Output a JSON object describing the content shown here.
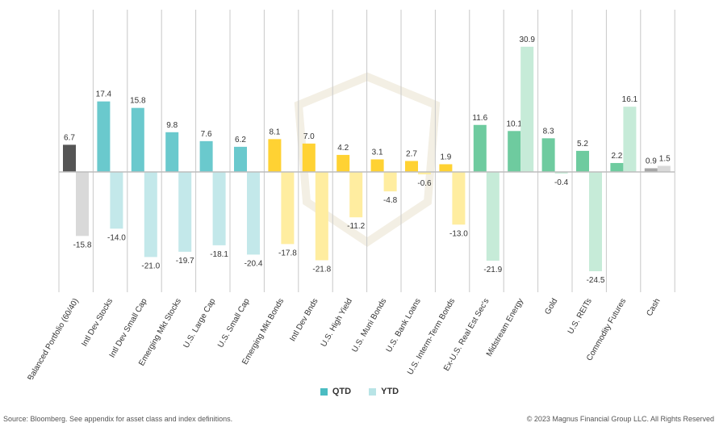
{
  "chart_data": {
    "type": "bar",
    "categories": [
      "Balanced Portfolio (60/40)",
      "Intl Dev Stocks",
      "Intl Dev Small Cap",
      "Emerging Mkt Stocks",
      "U.S. Large Cap",
      "U.S. Small Cap",
      "Emerging Mkt Bonds",
      "Intl Dev Bnds",
      "U.S. High Yield",
      "U.S. Muni Bonds",
      "U.S. Bank Loans",
      "U.S. Interm-Term Bonds",
      "Ex-U.S. Real Est Sec's",
      "Midstream Energy",
      "Gold",
      "U.S. REITs",
      "Commodity Futures",
      "Cash"
    ],
    "series": [
      {
        "name": "QTD",
        "values": [
          6.7,
          17.4,
          15.8,
          9.8,
          7.6,
          6.2,
          8.1,
          7.0,
          4.2,
          3.1,
          2.7,
          1.9,
          11.6,
          10.1,
          8.3,
          5.2,
          2.2,
          0.9
        ]
      },
      {
        "name": "YTD",
        "values": [
          -15.8,
          -14.0,
          -21.0,
          -19.7,
          -18.1,
          -20.4,
          -17.8,
          -21.8,
          -11.2,
          -4.8,
          -0.6,
          -13.0,
          -21.9,
          30.9,
          -0.4,
          -24.5,
          16.1,
          1.5
        ]
      }
    ],
    "labels": {
      "QTD": [
        "6.7",
        "17.4",
        "15.8",
        "9.8",
        "7.6",
        "6.2",
        "8.1",
        "7.0",
        "4.2",
        "3.1",
        "2.7",
        "1.9",
        "11.6",
        "10.1",
        "8.3",
        "5.2",
        "2.2",
        "0.9"
      ],
      "YTD": [
        "-15.8",
        "-14.0",
        "-21.0",
        "-19.7",
        "-18.1",
        "-20.4",
        "-17.8",
        "-21.8",
        "-11.2",
        "-4.8",
        "-0.6",
        "-13.0",
        "-21.9",
        "30.9",
        "-0.4",
        "-24.5",
        "16.1",
        "1.5"
      ]
    },
    "group_colors": [
      {
        "qtd": "#555555",
        "ytd": "#d9d9d9"
      },
      {
        "qtd": "#6ac9cd",
        "ytd": "#c3e8ea"
      },
      {
        "qtd": "#6ac9cd",
        "ytd": "#c3e8ea"
      },
      {
        "qtd": "#6ac9cd",
        "ytd": "#c3e8ea"
      },
      {
        "qtd": "#6ac9cd",
        "ytd": "#c3e8ea"
      },
      {
        "qtd": "#6ac9cd",
        "ytd": "#c3e8ea"
      },
      {
        "qtd": "#ffd233",
        "ytd": "#ffeda0"
      },
      {
        "qtd": "#ffd233",
        "ytd": "#ffeda0"
      },
      {
        "qtd": "#ffd233",
        "ytd": "#ffeda0"
      },
      {
        "qtd": "#ffd233",
        "ytd": "#ffeda0"
      },
      {
        "qtd": "#ffd233",
        "ytd": "#ffeda0"
      },
      {
        "qtd": "#ffd233",
        "ytd": "#ffeda0"
      },
      {
        "qtd": "#6ecb9f",
        "ytd": "#c6ebd8"
      },
      {
        "qtd": "#6ecb9f",
        "ytd": "#c6ebd8"
      },
      {
        "qtd": "#6ecb9f",
        "ytd": "#c6ebd8"
      },
      {
        "qtd": "#6ecb9f",
        "ytd": "#c6ebd8"
      },
      {
        "qtd": "#6ecb9f",
        "ytd": "#c6ebd8"
      },
      {
        "qtd": "#a6a6a6",
        "ytd": "#d9d9d9"
      }
    ],
    "ylim": [
      -30,
      40
    ],
    "grid": "vertical separators",
    "legend": "bottom-center",
    "legend_colors": {
      "QTD": "#4bbcc2",
      "YTD": "#b8e4e6"
    }
  },
  "legend": {
    "qtd": "QTD",
    "ytd": "YTD"
  },
  "footer": {
    "source": "Source: Bloomberg. See appendix for asset class and index definitions.",
    "copyright": "© 2023 Magnus Financial Group LLC. All Rights Reserved"
  },
  "watermark": "MAGNUS FINANCIAL GROUP"
}
